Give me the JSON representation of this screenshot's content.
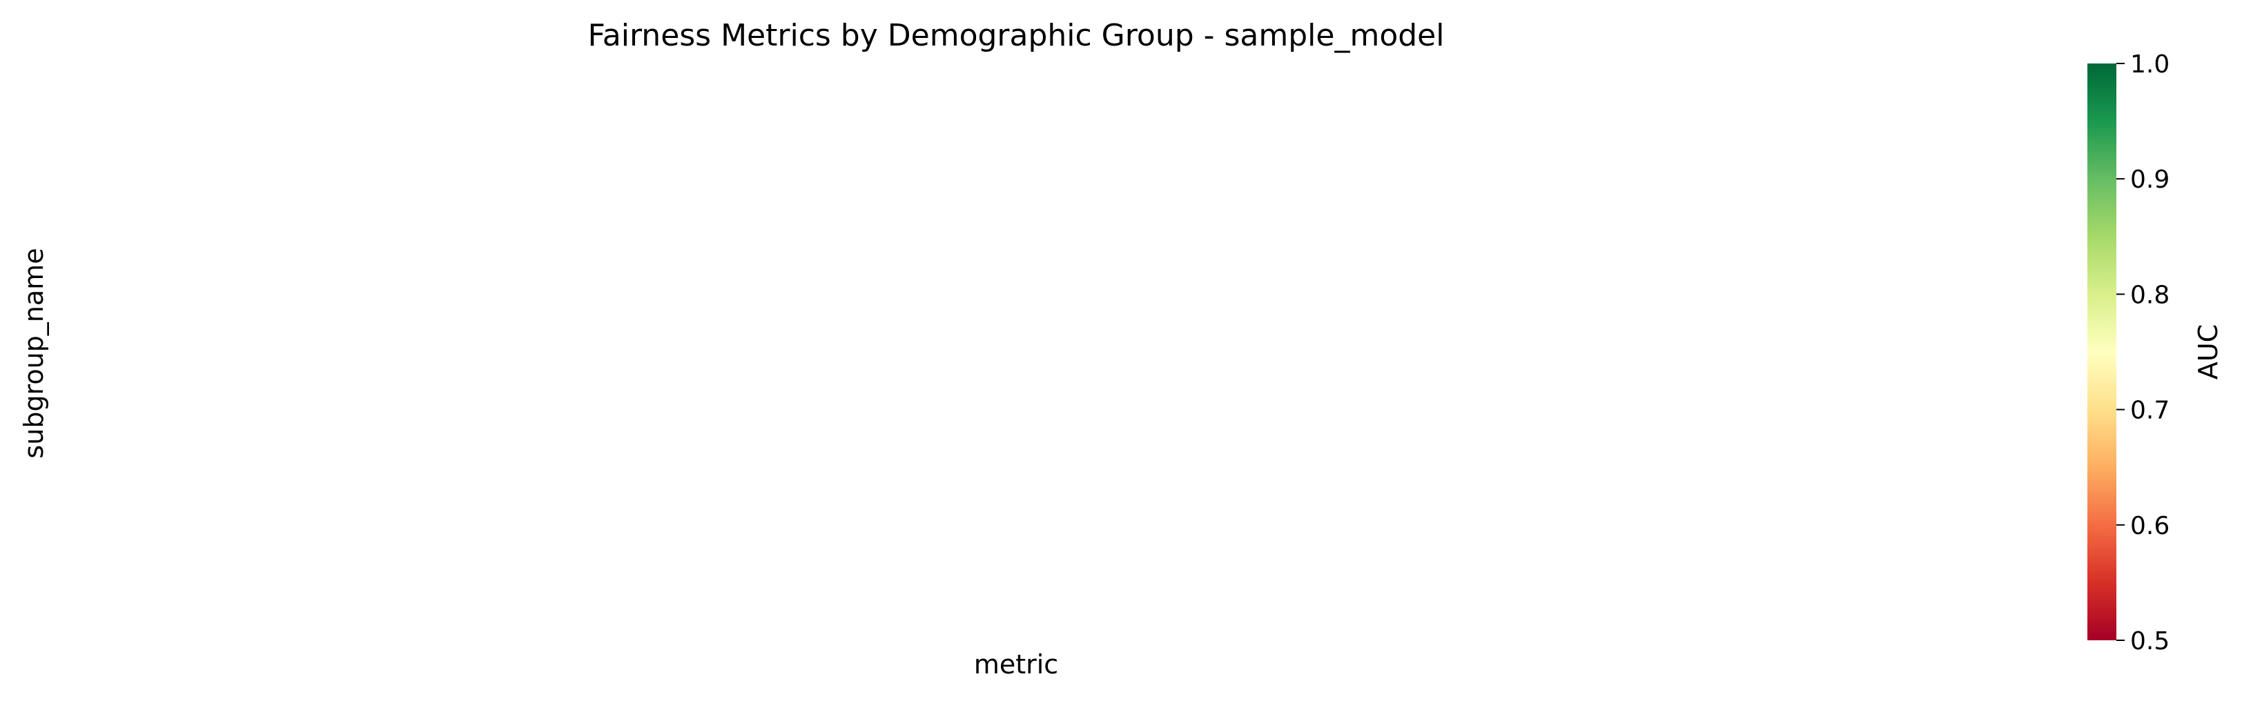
{
  "chart_data": {
    "type": "heatmap",
    "title": "Fairness Metrics by Demographic Group - sample_model",
    "xlabel": "metric",
    "ylabel": "subgroup_name",
    "rows": [],
    "columns": [],
    "values": [],
    "colorbar": {
      "label": "AUC",
      "range": [
        0.5,
        1.0
      ],
      "ticks": [
        "0.5",
        "0.6",
        "0.7",
        "0.8",
        "0.9",
        "1.0"
      ],
      "colormap": "RdYlGn",
      "colors": [
        "#a50026",
        "#d73027",
        "#f46d43",
        "#fdae61",
        "#fee08b",
        "#ffffbf",
        "#d9ef8b",
        "#a6d96a",
        "#66bd63",
        "#1a9850",
        "#006837"
      ]
    }
  }
}
